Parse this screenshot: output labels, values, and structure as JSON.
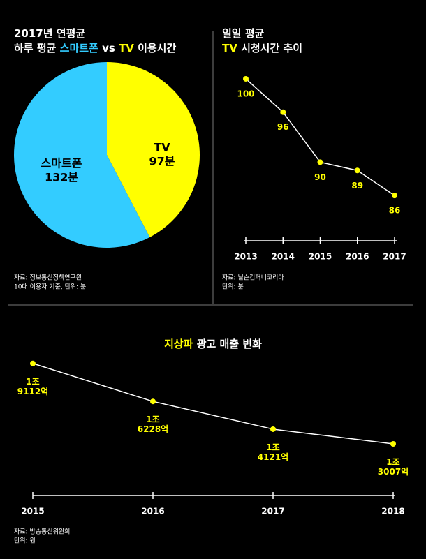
{
  "chart_data": [
    {
      "type": "pie",
      "title": [
        [
          "2017년 연평균"
        ],
        [
          "하루 평균 ",
          {
            "text": "스마트폰",
            "color": "#33ccff"
          },
          " vs ",
          {
            "text": "TV",
            "color": "#ffff00"
          },
          " 이용시간"
        ]
      ],
      "categories": [
        "TV",
        "스마트폰"
      ],
      "values": [
        97,
        132
      ],
      "value_labels": [
        "97분",
        "132분"
      ],
      "colors": [
        "#ffff00",
        "#33ccff"
      ],
      "notes": [
        "자료: 정보통신정책연구원",
        "10대 이용자 기준, 단위: 분"
      ]
    },
    {
      "type": "line",
      "title": [
        [
          "일일 평균"
        ],
        [
          {
            "text": "TV",
            "color": "#ffff00"
          },
          " 시청시간 추이"
        ]
      ],
      "categories": [
        "2013",
        "2014",
        "2015",
        "2016",
        "2017"
      ],
      "values": [
        100,
        96,
        90,
        89,
        86
      ],
      "ylim": [
        84,
        101
      ],
      "color": "#ffffff",
      "marker_color": "#ffff00",
      "notes": [
        "자료: 닐슨컴퍼니코리아",
        "단위: 분"
      ]
    },
    {
      "type": "line",
      "title": [
        [
          {
            "text": "지상파",
            "color": "#ffff00"
          },
          " 광고 매출 변화"
        ]
      ],
      "categories": [
        "2015",
        "2016",
        "2017",
        "2018"
      ],
      "values": [
        19112,
        16228,
        14121,
        13007
      ],
      "value_labels": [
        "1조 9112억",
        "1조 6228억",
        "1조 4121억",
        "1조 3007억"
      ],
      "ylim": [
        12000,
        20000
      ],
      "color": "#ffffff",
      "marker_color": "#ffff00",
      "notes": [
        "자료: 방송통신위원회",
        "단위: 원"
      ]
    }
  ]
}
